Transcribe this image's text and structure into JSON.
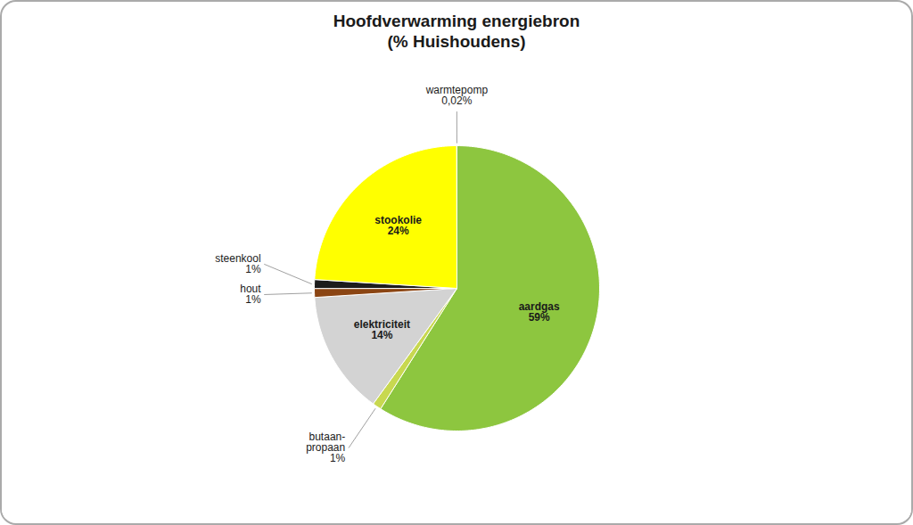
{
  "chart_data": {
    "type": "pie",
    "title": "Hoofdverwarming energiebron\n(% Huishoudens)",
    "categories": [
      "aardgas",
      "butaan-\npropaan",
      "elektriciteit",
      "hout",
      "steenkool",
      "stookolie",
      "warmtepomp"
    ],
    "values": [
      59,
      1,
      14,
      1,
      1,
      24,
      0.02
    ],
    "value_labels": [
      "59%",
      "1%",
      "14%",
      "1%",
      "1%",
      "24%",
      "0,02%"
    ],
    "colors": [
      "#8DC63F",
      "#C8D850",
      "#D3D3D3",
      "#8B4513",
      "#1C1C1C",
      "#FFFF00",
      "#F5F5F5"
    ],
    "data_labels": true
  }
}
